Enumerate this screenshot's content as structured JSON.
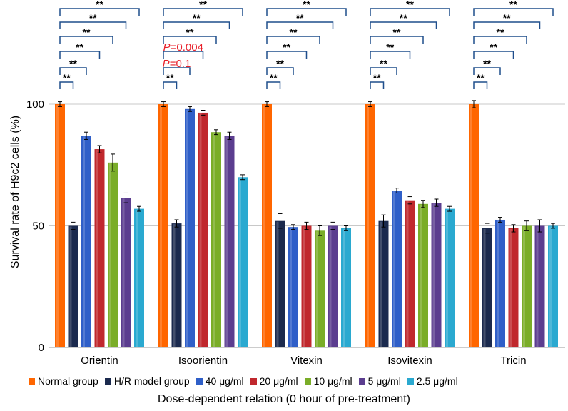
{
  "chart_data": {
    "type": "bar",
    "ylabel": "Survival rate of H9c2 cells (%)",
    "xlabel": "Dose-dependent relation (0 hour of pre-treatment)",
    "ylim": [
      0,
      108
    ],
    "yticks": [
      "0",
      "50",
      "100"
    ],
    "ytick_values": [
      0,
      50,
      100
    ],
    "grid": true,
    "categories": [
      "Orientin",
      "Isoorientin",
      "Vitexin",
      "Isovitexin",
      "Tricin"
    ],
    "series": [
      {
        "name": "Normal group",
        "color": "#ff6600",
        "values": [
          100,
          100,
          100,
          100,
          100
        ],
        "errors": [
          1,
          1,
          1,
          1,
          1.5
        ]
      },
      {
        "name": "H/R model group",
        "color": "#1b2a4e",
        "values": [
          50,
          51,
          52,
          52,
          49
        ],
        "errors": [
          1.5,
          1.5,
          3,
          2.5,
          2
        ]
      },
      {
        "name": "40 μg/ml",
        "color": "#2f5fc8",
        "values": [
          87,
          98,
          49.5,
          64.5,
          52.5
        ],
        "errors": [
          1.5,
          1,
          1,
          1,
          1
        ]
      },
      {
        "name": "20 μg/ml",
        "color": "#c0282d",
        "values": [
          81.5,
          96.5,
          50,
          60.5,
          49
        ],
        "errors": [
          1.5,
          1,
          1.5,
          1.5,
          1.5
        ]
      },
      {
        "name": "10 μg/ml",
        "color": "#7aad28",
        "values": [
          76,
          88.5,
          48,
          59,
          50
        ],
        "errors": [
          3.5,
          1,
          2,
          1.5,
          2
        ]
      },
      {
        "name": "5 μg/ml",
        "color": "#5b3d8f",
        "values": [
          61.5,
          87,
          50,
          59.5,
          50
        ],
        "errors": [
          2,
          1.5,
          1.5,
          1.5,
          2.5
        ]
      },
      {
        "name": "2.5 μg/ml",
        "color": "#2aa9d0",
        "values": [
          57,
          70,
          49,
          57,
          50
        ],
        "errors": [
          1,
          1,
          1,
          1,
          1
        ]
      }
    ],
    "annotations": {
      "default": [
        "**",
        "**",
        "**",
        "**",
        "**",
        "**"
      ],
      "Isoorientin": [
        "**",
        "P=0.1",
        "P=0.004",
        "**",
        "**",
        "**"
      ]
    },
    "annotation_p_color": "#e8202a"
  }
}
